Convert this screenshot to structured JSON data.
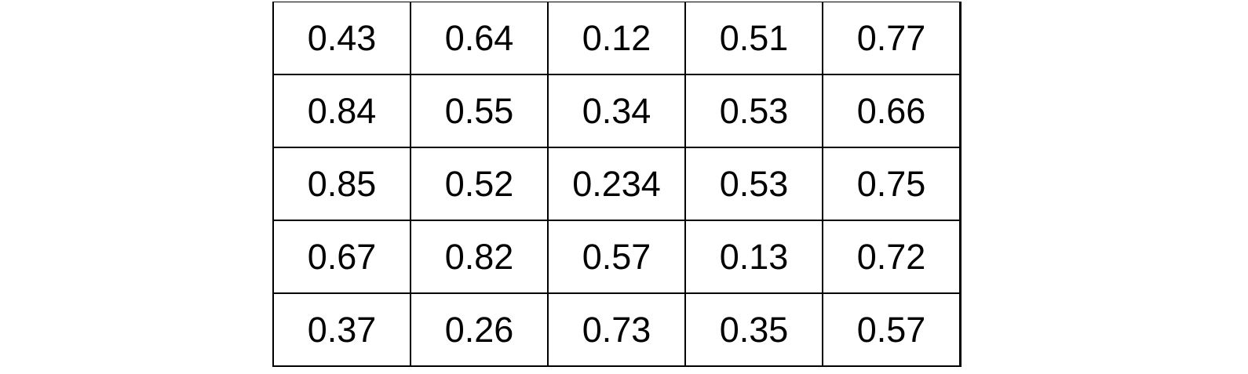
{
  "table": {
    "rows": [
      [
        "0.43",
        "0.64",
        "0.12",
        "0.51",
        "0.77"
      ],
      [
        "0.84",
        "0.55",
        "0.34",
        "0.53",
        "0.66"
      ],
      [
        "0.85",
        "0.52",
        "0.234",
        "0.53",
        "0.75"
      ],
      [
        "0.67",
        "0.82",
        "0.57",
        "0.13",
        "0.72"
      ],
      [
        "0.37",
        "0.26",
        "0.73",
        "0.35",
        "0.57"
      ]
    ]
  }
}
